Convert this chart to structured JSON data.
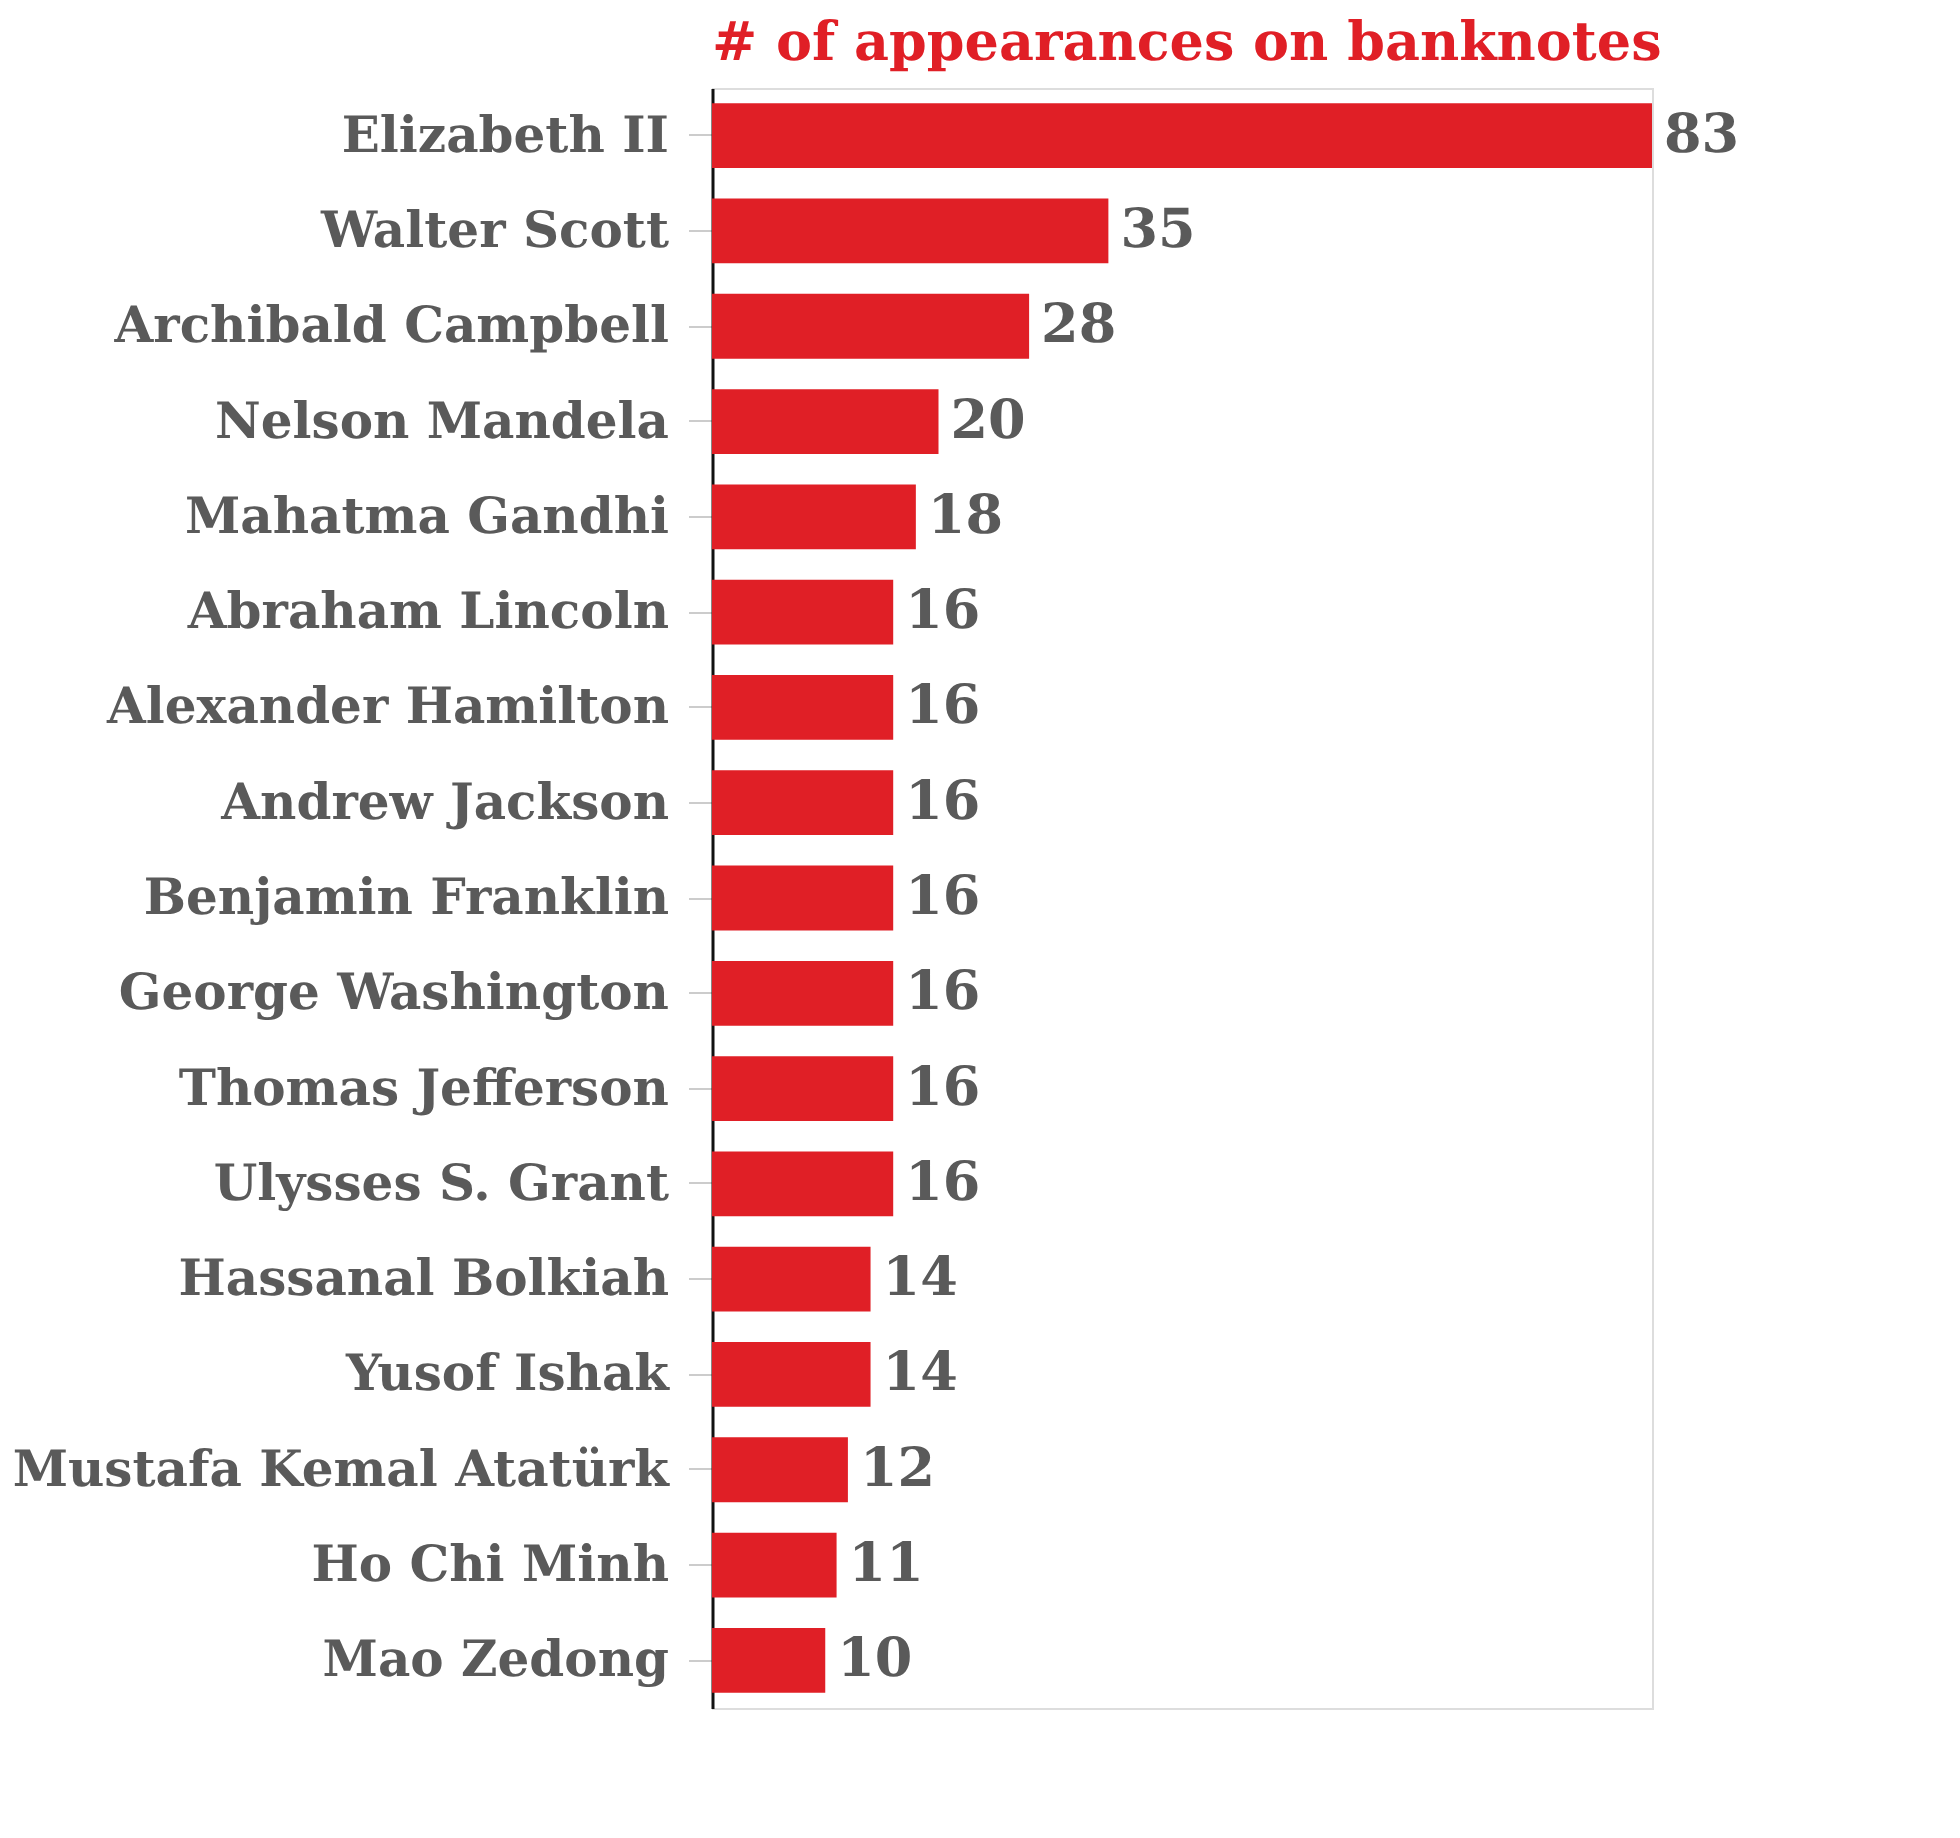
{
  "chart_data": {
    "type": "bar",
    "orientation": "horizontal",
    "title": "# of appearances on banknotes",
    "categories": [
      "Elizabeth II",
      "Walter Scott",
      "Archibald Campbell",
      "Nelson Mandela",
      "Mahatma Gandhi",
      "Abraham Lincoln",
      "Alexander Hamilton",
      "Andrew Jackson",
      "Benjamin Franklin",
      "George Washington",
      "Thomas Jefferson",
      "Ulysses S. Grant",
      "Hassanal Bolkiah",
      "Yusof Ishak",
      "Mustafa Kemal Atatürk",
      "Ho Chi Minh",
      "Mao Zedong"
    ],
    "values": [
      83,
      35,
      28,
      20,
      18,
      16,
      16,
      16,
      16,
      16,
      16,
      16,
      14,
      14,
      12,
      11,
      10
    ],
    "color": "#e01f26",
    "xlim": [
      0,
      83
    ],
    "data_labels": true,
    "tick_labels": "y"
  }
}
